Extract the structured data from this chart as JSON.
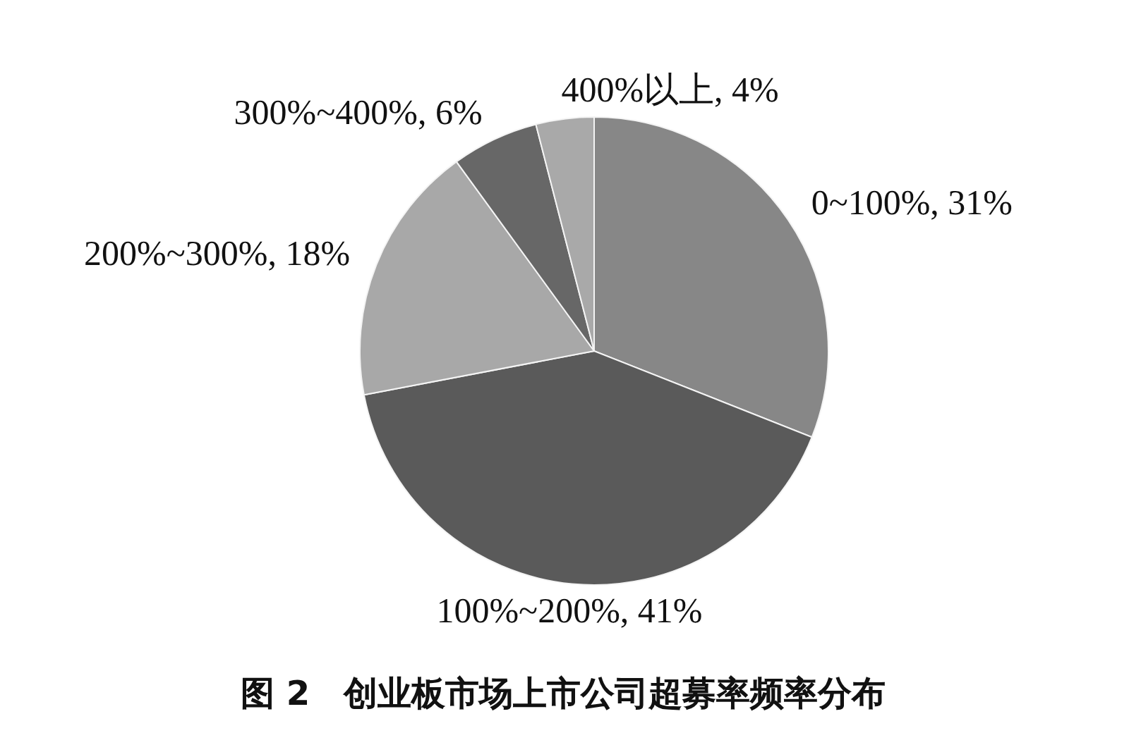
{
  "chart_data": {
    "type": "pie",
    "title": "图 2　创业板市场上市公司超募率频率分布",
    "categories": [
      "0~100%",
      "100%~200%",
      "200%~300%",
      "300%~400%",
      "400%以上"
    ],
    "values": [
      31,
      41,
      18,
      6,
      4
    ],
    "colors": [
      "#878787",
      "#5a5a5a",
      "#a8a8a8",
      "#676767",
      "#a9a9a9"
    ],
    "value_labels": [
      "31%",
      "41%",
      "18%",
      "6%",
      "4%"
    ]
  }
}
